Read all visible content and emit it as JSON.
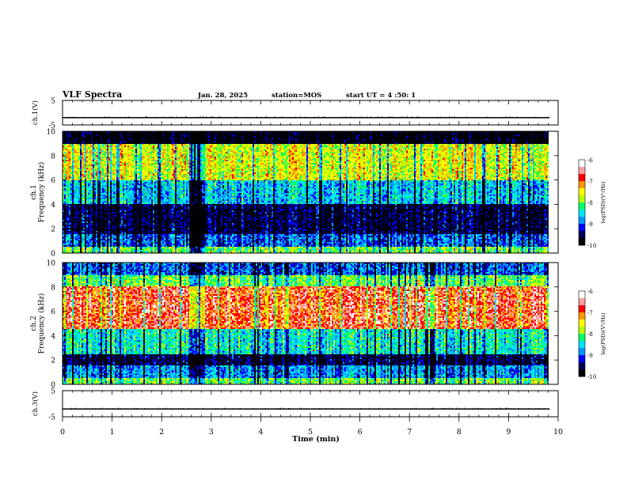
{
  "header": {
    "title": "VLF Spectra",
    "date": "Jan. 28, 2025",
    "station": "station=MOS",
    "start_ut": "start UT =  4 :50: 1"
  },
  "colors": {
    "spectrum_scale": [
      "#000000",
      "#00005a",
      "#0000ff",
      "#0096ff",
      "#00e6ff",
      "#00ff64",
      "#b4ff00",
      "#ffff00",
      "#ff9600",
      "#ff0000",
      "#ff9ea0",
      "#ffffff"
    ]
  },
  "chart_data": [
    {
      "id": "ch1-voltage",
      "type": "line",
      "ylabel": "ch.1(V)",
      "ylim": [
        -5,
        5
      ],
      "yticks": [
        "5",
        "-5"
      ],
      "xlim": [
        0,
        10
      ],
      "series": [
        {
          "values_approx": "constant near -2 V with small spikes"
        }
      ]
    },
    {
      "id": "ch1-spectrogram",
      "type": "heatmap",
      "ylabel": "ch.1\nFrequency (kHz)",
      "ylim": [
        0,
        10
      ],
      "yticks": [
        "0",
        "2",
        "4",
        "6",
        "8",
        "10"
      ],
      "xlim": [
        0,
        10
      ],
      "data_end_min": 9.83,
      "colorbar": {
        "label": "log(PSD)(V²/Hz)",
        "range": [
          -10,
          -6
        ],
        "ticks": [
          "-6",
          "-7",
          "-8",
          "-9",
          "-10"
        ]
      },
      "bands": [
        {
          "freq_khz": [
            0,
            0.5
          ],
          "level": -8.0
        },
        {
          "freq_khz": [
            0.5,
            1.5
          ],
          "level": -9.0
        },
        {
          "freq_khz": [
            1.5,
            4.0
          ],
          "level": -9.6
        },
        {
          "freq_khz": [
            4.0,
            6.0
          ],
          "level": -8.6
        },
        {
          "freq_khz": [
            6.0,
            9.0
          ],
          "level": -7.6
        },
        {
          "freq_khz": [
            9.0,
            10.0
          ],
          "level": -9.9
        }
      ]
    },
    {
      "id": "ch2-spectrogram",
      "type": "heatmap",
      "ylabel": "ch.2\nFrequency (kHz)",
      "ylim": [
        0,
        10
      ],
      "yticks": [
        "0",
        "2",
        "4",
        "6",
        "8",
        "10"
      ],
      "xlim": [
        0,
        10
      ],
      "data_end_min": 9.83,
      "colorbar": {
        "label": "log(PSD)(V²/Hz)",
        "range": [
          -10,
          -6
        ],
        "ticks": [
          "-6",
          "-7",
          "-8",
          "-9",
          "-10"
        ]
      },
      "bands": [
        {
          "freq_khz": [
            0,
            0.5
          ],
          "level": -8.0
        },
        {
          "freq_khz": [
            0.5,
            1.5
          ],
          "level": -8.8
        },
        {
          "freq_khz": [
            1.5,
            2.5
          ],
          "level": -9.6
        },
        {
          "freq_khz": [
            2.5,
            4.5
          ],
          "level": -8.4
        },
        {
          "freq_khz": [
            4.5,
            8.0
          ],
          "level": -6.8
        },
        {
          "freq_khz": [
            8.0,
            9.0
          ],
          "level": -8.0
        },
        {
          "freq_khz": [
            9.0,
            10.0
          ],
          "level": -9.0
        }
      ]
    },
    {
      "id": "ch3-voltage",
      "type": "line",
      "ylabel": "ch.3(V)",
      "ylim": [
        -5,
        5
      ],
      "yticks": [
        "5",
        "-5"
      ],
      "xlim": [
        0,
        10
      ],
      "xlabel": "Time  (min)",
      "xticks": [
        "0",
        "1",
        "2",
        "3",
        "4",
        "5",
        "6",
        "7",
        "8",
        "9",
        "10"
      ],
      "series": [
        {
          "values_approx": "constant near -2 V with small spikes"
        }
      ]
    }
  ]
}
